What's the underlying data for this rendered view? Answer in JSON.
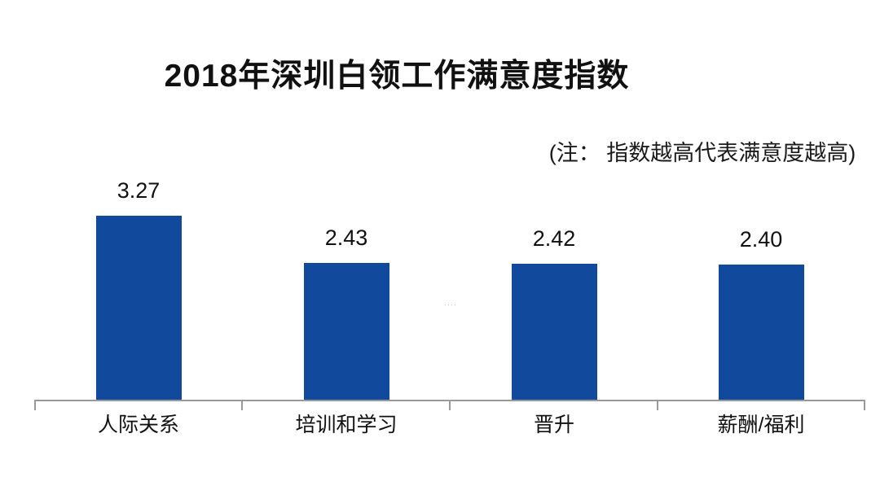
{
  "page": {
    "background": "#ffffff"
  },
  "decor": {
    "watermark": "····"
  },
  "chart_data": {
    "type": "bar",
    "title": "2018年深圳白领工作满意度指数",
    "annotation": "(注： 指数越高代表满意度越高)",
    "categories": [
      "人际关系",
      "培训和学习",
      "晋升",
      "薪酬/福利"
    ],
    "values": [
      3.27,
      2.43,
      2.42,
      2.4
    ],
    "value_labels": [
      "3.27",
      "2.43",
      "2.42",
      "2.40"
    ],
    "xlabel": "",
    "ylabel": "",
    "ylim": [
      0,
      3.6
    ],
    "grid": false,
    "legend": false,
    "y_axis_visible": false,
    "bar_color": "#11499c",
    "axis_color": "#999999",
    "text_color": "#111111"
  }
}
